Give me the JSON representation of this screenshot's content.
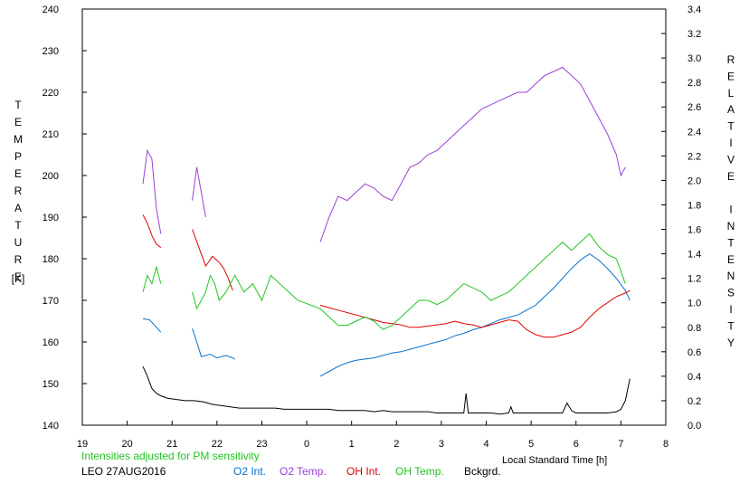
{
  "chart_data": {
    "type": "line",
    "ylabel_left": "TEMPERATURE",
    "ylabel_left_unit": "[K]",
    "ylabel_right": "RELATIVE INTENSITY",
    "xlabel": "Local Standard Time [h]",
    "note": "Intensities adjusted for PM sensitivity",
    "footer_label": "LEO 27AUG2016",
    "xlim": [
      19,
      32
    ],
    "x_tick_labels": [
      "19",
      "20",
      "21",
      "22",
      "23",
      "0",
      "1",
      "2",
      "3",
      "4",
      "5",
      "6",
      "7",
      "8"
    ],
    "ylim_left": [
      140,
      240
    ],
    "y_ticks_left": [
      140,
      150,
      160,
      170,
      180,
      190,
      200,
      210,
      220,
      230,
      240
    ],
    "ylim_right": [
      0.0,
      3.4
    ],
    "y_ticks_right": [
      "0.0",
      "0.2",
      "0.4",
      "0.6",
      "0.8",
      "1.0",
      "1.2",
      "1.4",
      "1.6",
      "1.8",
      "2.0",
      "2.2",
      "2.4",
      "2.6",
      "2.8",
      "3.0",
      "3.2",
      "3.4"
    ],
    "grid": false,
    "legend_position": "bottom",
    "series": [
      {
        "name": "O2 Int.",
        "color": "#0070d0",
        "axis": "right",
        "x": [
          20.35,
          20.5,
          20.6,
          20.75,
          21.45,
          21.55,
          21.65,
          21.85,
          22.0,
          22.2,
          22.35,
          22.4,
          24.3,
          24.5,
          24.7,
          24.9,
          25.1,
          25.3,
          25.5,
          25.7,
          25.9,
          26.1,
          26.3,
          26.5,
          26.7,
          26.9,
          27.1,
          27.3,
          27.5,
          27.7,
          27.9,
          28.1,
          28.3,
          28.5,
          28.7,
          28.9,
          29.1,
          29.3,
          29.5,
          29.7,
          29.9,
          30.1,
          30.3,
          30.5,
          30.7,
          30.9,
          31.1,
          31.2
        ],
        "y": [
          0.87,
          0.86,
          0.82,
          0.76,
          0.79,
          0.68,
          0.56,
          0.58,
          0.55,
          0.57,
          0.55,
          0.54,
          0.4,
          0.44,
          0.48,
          0.51,
          0.53,
          0.54,
          0.55,
          0.57,
          0.59,
          0.6,
          0.62,
          0.64,
          0.66,
          0.68,
          0.7,
          0.73,
          0.75,
          0.78,
          0.8,
          0.83,
          0.86,
          0.88,
          0.9,
          0.94,
          0.98,
          1.05,
          1.12,
          1.2,
          1.28,
          1.35,
          1.4,
          1.35,
          1.28,
          1.2,
          1.1,
          1.02
        ]
      },
      {
        "name": "O2 Temp.",
        "color": "#9940d8",
        "axis": "left",
        "x": [
          20.35,
          20.45,
          20.55,
          20.65,
          20.75,
          21.45,
          21.55,
          21.65,
          21.75,
          24.3,
          24.5,
          24.7,
          24.9,
          25.1,
          25.3,
          25.5,
          25.7,
          25.9,
          26.1,
          26.3,
          26.5,
          26.7,
          26.9,
          27.1,
          27.3,
          27.5,
          27.7,
          27.9,
          28.1,
          28.3,
          28.5,
          28.7,
          28.9,
          29.1,
          29.3,
          29.5,
          29.7,
          29.9,
          30.1,
          30.3,
          30.5,
          30.7,
          30.9,
          31.0,
          31.1
        ],
        "y": [
          198,
          206,
          204,
          192,
          186,
          194,
          202,
          196,
          190,
          184,
          190,
          195,
          194,
          196,
          198,
          197,
          195,
          194,
          198,
          202,
          203,
          205,
          206,
          208,
          210,
          212,
          214,
          216,
          217,
          218,
          219,
          220,
          220,
          222,
          224,
          225,
          226,
          224,
          222,
          218,
          214,
          210,
          205,
          200,
          202
        ]
      },
      {
        "name": "OH Int.",
        "color": "#e00000",
        "axis": "right",
        "x": [
          20.35,
          20.45,
          20.55,
          20.65,
          20.75,
          21.45,
          21.55,
          21.75,
          21.9,
          22.05,
          22.15,
          22.25,
          22.35,
          24.3,
          24.5,
          24.7,
          24.9,
          25.1,
          25.3,
          25.5,
          25.7,
          25.9,
          26.1,
          26.3,
          26.5,
          26.7,
          26.9,
          27.1,
          27.3,
          27.5,
          27.7,
          27.9,
          28.1,
          28.3,
          28.5,
          28.7,
          28.9,
          29.1,
          29.3,
          29.5,
          29.7,
          29.9,
          30.1,
          30.3,
          30.5,
          30.7,
          30.9,
          31.1,
          31.2
        ],
        "y": [
          1.72,
          1.65,
          1.55,
          1.48,
          1.45,
          1.6,
          1.5,
          1.3,
          1.38,
          1.33,
          1.28,
          1.2,
          1.1,
          0.98,
          0.96,
          0.94,
          0.92,
          0.9,
          0.88,
          0.86,
          0.84,
          0.83,
          0.82,
          0.8,
          0.8,
          0.81,
          0.82,
          0.83,
          0.85,
          0.83,
          0.82,
          0.8,
          0.82,
          0.84,
          0.86,
          0.85,
          0.78,
          0.74,
          0.72,
          0.72,
          0.74,
          0.76,
          0.8,
          0.88,
          0.95,
          1.0,
          1.05,
          1.08,
          1.1
        ]
      },
      {
        "name": "OH Temp.",
        "color": "#22c422",
        "axis": "left",
        "x": [
          20.35,
          20.45,
          20.55,
          20.65,
          20.75,
          21.45,
          21.55,
          21.65,
          21.75,
          21.85,
          21.95,
          22.05,
          22.2,
          22.4,
          22.6,
          22.8,
          23.0,
          23.2,
          23.4,
          23.6,
          23.8,
          24.3,
          24.5,
          24.7,
          24.9,
          25.1,
          25.3,
          25.5,
          25.7,
          25.9,
          26.1,
          26.3,
          26.5,
          26.7,
          26.9,
          27.1,
          27.3,
          27.5,
          27.7,
          27.9,
          28.1,
          28.3,
          28.5,
          28.7,
          28.9,
          29.1,
          29.3,
          29.5,
          29.7,
          29.9,
          30.1,
          30.3,
          30.5,
          30.7,
          30.9,
          31.1
        ],
        "y": [
          172,
          176,
          174,
          178,
          174,
          172,
          168,
          170,
          172,
          176,
          174,
          170,
          172,
          176,
          172,
          174,
          170,
          176,
          174,
          172,
          170,
          168,
          166,
          164,
          164,
          165,
          166,
          165,
          163,
          164,
          166,
          168,
          170,
          170,
          169,
          170,
          172,
          174,
          173,
          172,
          170,
          171,
          172,
          174,
          176,
          178,
          180,
          182,
          184,
          182,
          184,
          186,
          183,
          181,
          180,
          174
        ]
      },
      {
        "name": "Bckgrd.",
        "color": "#000000",
        "axis": "right",
        "x": [
          20.35,
          20.45,
          20.55,
          20.65,
          20.75,
          20.9,
          21.1,
          21.3,
          21.5,
          21.7,
          21.9,
          22.1,
          22.3,
          22.5,
          22.7,
          22.9,
          23.1,
          23.3,
          23.5,
          23.7,
          23.9,
          24.1,
          24.3,
          24.5,
          24.7,
          24.9,
          25.1,
          25.3,
          25.5,
          25.7,
          25.9,
          26.1,
          26.3,
          26.5,
          26.7,
          26.9,
          27.1,
          27.3,
          27.5,
          27.55,
          27.6,
          27.7,
          27.9,
          28.1,
          28.3,
          28.5,
          28.55,
          28.6,
          28.7,
          28.9,
          29.1,
          29.3,
          29.5,
          29.7,
          29.8,
          29.9,
          30.0,
          30.1,
          30.3,
          30.5,
          30.7,
          30.9,
          31.0,
          31.1,
          31.2
        ],
        "y": [
          0.48,
          0.4,
          0.3,
          0.26,
          0.24,
          0.22,
          0.21,
          0.2,
          0.2,
          0.19,
          0.17,
          0.16,
          0.15,
          0.14,
          0.14,
          0.14,
          0.14,
          0.14,
          0.13,
          0.13,
          0.13,
          0.13,
          0.13,
          0.13,
          0.12,
          0.12,
          0.12,
          0.12,
          0.11,
          0.12,
          0.11,
          0.11,
          0.11,
          0.11,
          0.11,
          0.1,
          0.1,
          0.1,
          0.1,
          0.26,
          0.1,
          0.1,
          0.1,
          0.1,
          0.09,
          0.1,
          0.15,
          0.1,
          0.1,
          0.1,
          0.1,
          0.1,
          0.1,
          0.1,
          0.18,
          0.12,
          0.1,
          0.1,
          0.1,
          0.1,
          0.1,
          0.11,
          0.13,
          0.2,
          0.38
        ]
      }
    ]
  }
}
